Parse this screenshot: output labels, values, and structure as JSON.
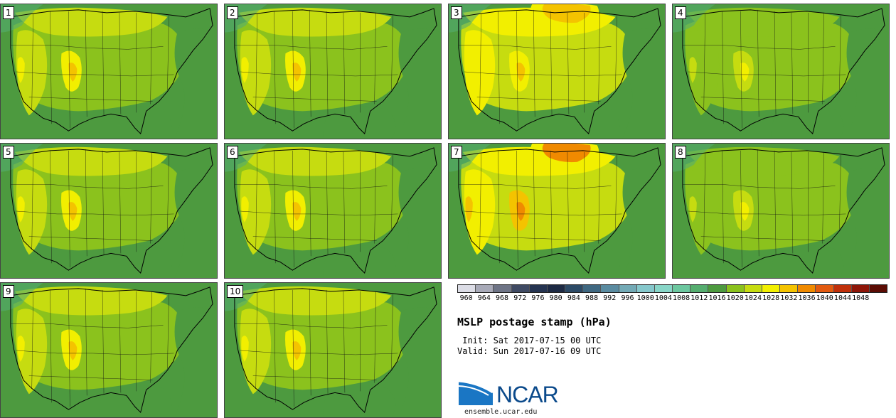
{
  "figure": {
    "title": "MSLP postage stamp (hPa)",
    "init": " Init: Sat 2017-07-15 00 UTC",
    "valid": "Valid: Sun 2017-07-16 09 UTC",
    "logo_text": "NCAR",
    "site": "ensemble.ucar.edu"
  },
  "members": [
    {
      "label": "1",
      "variant": "base"
    },
    {
      "label": "2",
      "variant": "base"
    },
    {
      "label": "3",
      "variant": "high"
    },
    {
      "label": "4",
      "variant": "low"
    },
    {
      "label": "5",
      "variant": "base"
    },
    {
      "label": "6",
      "variant": "base"
    },
    {
      "label": "7",
      "variant": "veryhigh"
    },
    {
      "label": "8",
      "variant": "low"
    },
    {
      "label": "9",
      "variant": "base"
    },
    {
      "label": "10",
      "variant": "base"
    }
  ],
  "colorbar": {
    "ticks": [
      "960",
      "964",
      "968",
      "972",
      "976",
      "980",
      "984",
      "988",
      "992",
      "996",
      "1000",
      "1004",
      "1008",
      "1012",
      "1016",
      "1020",
      "1024",
      "1028",
      "1032",
      "1036",
      "1040",
      "1044",
      "1048"
    ],
    "colors": [
      "#dcdde6",
      "#a8aab8",
      "#6e7486",
      "#3f4a63",
      "#253451",
      "#1d2a44",
      "#2c4a66",
      "#3f6881",
      "#5a8ba0",
      "#73aab6",
      "#86c8cc",
      "#88d6c8",
      "#6cc79f",
      "#55ad6f",
      "#4d9a3f",
      "#8bc21d",
      "#c6dc10",
      "#f2ef00",
      "#f4c300",
      "#f08a00",
      "#e25a10",
      "#c0300a",
      "#8e1608",
      "#5b0c04"
    ]
  }
}
